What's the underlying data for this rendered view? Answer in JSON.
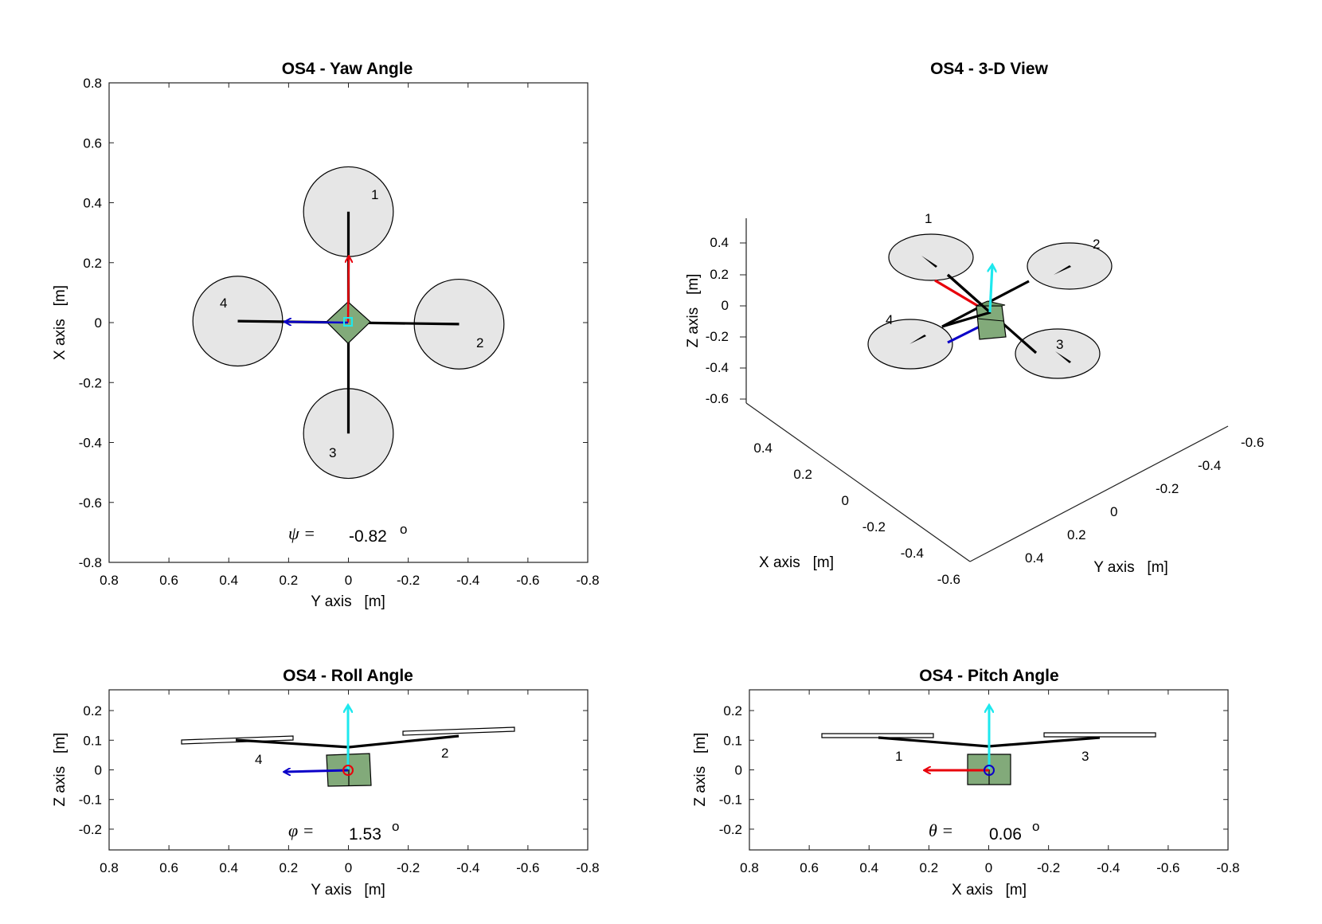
{
  "figure": {
    "plots": {
      "yaw": {
        "title": "OS4 - Yaw Angle",
        "xlabel": "Y axis   [m]",
        "ylabel": "X axis   [m]",
        "angle_symbol": "ψ =",
        "angle_value": "-0.82",
        "angle_unit": "o",
        "rotor_labels": [
          "1",
          "2",
          "3",
          "4"
        ]
      },
      "view3d": {
        "title": "OS4 - 3-D View",
        "xlabel": "X axis   [m]",
        "ylabel": "Y axis   [m]",
        "zlabel": "Z axis   [m]",
        "rotor_labels": [
          "1",
          "2",
          "3",
          "4"
        ]
      },
      "roll": {
        "title": "OS4 - Roll Angle",
        "xlabel": "Y axis   [m]",
        "ylabel": "Z axis   [m]",
        "angle_symbol": "φ =",
        "angle_value": "1.53",
        "angle_unit": "o",
        "rotor_labels": [
          "4",
          "2"
        ]
      },
      "pitch": {
        "title": "OS4 - Pitch Angle",
        "xlabel": "X axis   [m]",
        "ylabel": "Z axis   [m]",
        "angle_symbol": "θ =",
        "angle_value": "0.06",
        "angle_unit": "o",
        "rotor_labels": [
          "1",
          "3"
        ]
      }
    },
    "colors": {
      "body": "#82aa7a",
      "rotor": "#e6e6e6",
      "arm": "#000000",
      "x_axis_arrow": "#e8000b",
      "y_axis_arrow": "#0b00c8",
      "z_axis_arrow": "#1ee8ee"
    }
  },
  "chart_data": [
    {
      "type": "scatter",
      "name_ref": "yaw",
      "title": "OS4 - Yaw Angle",
      "xlabel": "Y axis   [m]",
      "ylabel": "X axis   [m]",
      "xlim": [
        0.8,
        -0.8
      ],
      "ylim": [
        -0.8,
        0.8
      ],
      "xticks": [
        "0.8",
        "0.6",
        "0.4",
        "0.2",
        "0",
        "-0.2",
        "-0.4",
        "-0.6",
        "-0.8"
      ],
      "yticks": [
        "0.8",
        "0.6",
        "0.4",
        "0.2",
        "0",
        "-0.2",
        "-0.4",
        "-0.6",
        "-0.8"
      ],
      "rotors": [
        {
          "label": "1",
          "y": 0.0,
          "x": 0.37,
          "r": 0.15
        },
        {
          "label": "2",
          "y": -0.37,
          "x": -0.005,
          "r": 0.15
        },
        {
          "label": "3",
          "y": 0.0,
          "x": -0.37,
          "r": 0.15
        },
        {
          "label": "4",
          "y": 0.37,
          "x": 0.005,
          "r": 0.15
        }
      ],
      "body_center": {
        "y": 0.0,
        "x": 0.0
      }
    },
    {
      "type": "scatter",
      "name_ref": "view3d",
      "title": "OS4 - 3-D View",
      "xlabel": "X axis   [m]",
      "ylabel": "Y axis   [m]",
      "zlabel": "Z axis   [m]",
      "xticks": [
        "0.4",
        "0.2",
        "0",
        "-0.2",
        "-0.4",
        "-0.6"
      ],
      "yticks": [
        "-0.6",
        "-0.4",
        "-0.2",
        "0",
        "0.2",
        "0.4"
      ],
      "zticks": [
        "0.4",
        "0.2",
        "0",
        "-0.2",
        "-0.4",
        "-0.6"
      ],
      "rotors": [
        "1",
        "2",
        "3",
        "4"
      ]
    },
    {
      "type": "scatter",
      "name_ref": "roll",
      "title": "OS4 - Roll Angle",
      "xlabel": "Y axis   [m]",
      "ylabel": "Z axis   [m]",
      "xlim": [
        0.8,
        -0.8
      ],
      "ylim": [
        -0.27,
        0.27
      ],
      "xticks": [
        "0.8",
        "0.6",
        "0.4",
        "0.2",
        "0",
        "-0.2",
        "-0.4",
        "-0.6",
        "-0.8"
      ],
      "yticks": [
        "0.2",
        "0.1",
        "0",
        "-0.1",
        "-0.2"
      ],
      "roll_deg": 1.53,
      "rotors": [
        {
          "label": "4",
          "h": 0.37
        },
        {
          "label": "2",
          "h": -0.37
        }
      ]
    },
    {
      "type": "scatter",
      "name_ref": "pitch",
      "title": "OS4 - Pitch Angle",
      "xlabel": "X axis   [m]",
      "ylabel": "Z axis   [m]",
      "xlim": [
        0.8,
        -0.8
      ],
      "ylim": [
        -0.27,
        0.27
      ],
      "xticks": [
        "0.8",
        "0.6",
        "0.4",
        "0.2",
        "0",
        "-0.2",
        "-0.4",
        "-0.6",
        "-0.8"
      ],
      "yticks": [
        "0.2",
        "0.1",
        "0",
        "-0.1",
        "-0.2"
      ],
      "pitch_deg": 0.06,
      "rotors": [
        {
          "label": "1",
          "h": 0.37
        },
        {
          "label": "3",
          "h": -0.37
        }
      ]
    }
  ]
}
